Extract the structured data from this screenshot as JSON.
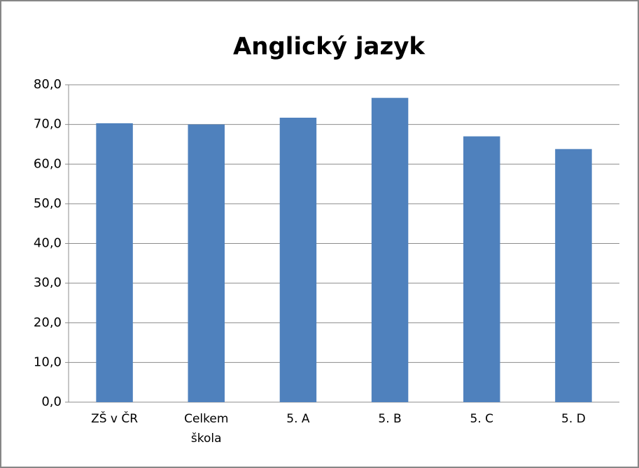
{
  "chart_data": {
    "type": "bar",
    "title": "Anglický jazyk",
    "categories": [
      "ZŠ v ČR",
      "Celkem škola",
      "5. A",
      "5. B",
      "5. C",
      "5. D"
    ],
    "values": [
      70.3,
      70.0,
      71.7,
      76.7,
      67.0,
      63.8
    ],
    "color": "#4f81bd",
    "ylim": [
      0,
      80
    ],
    "yticks": [
      {
        "value": 0,
        "label": "0,0"
      },
      {
        "value": 10,
        "label": "10,0"
      },
      {
        "value": 20,
        "label": "20,0"
      },
      {
        "value": 30,
        "label": "30,0"
      },
      {
        "value": 40,
        "label": "40,0"
      },
      {
        "value": 50,
        "label": "50,0"
      },
      {
        "value": 60,
        "label": "60,0"
      },
      {
        "value": 70,
        "label": "70,0"
      },
      {
        "value": 80,
        "label": "80,0"
      }
    ],
    "grid": true
  }
}
